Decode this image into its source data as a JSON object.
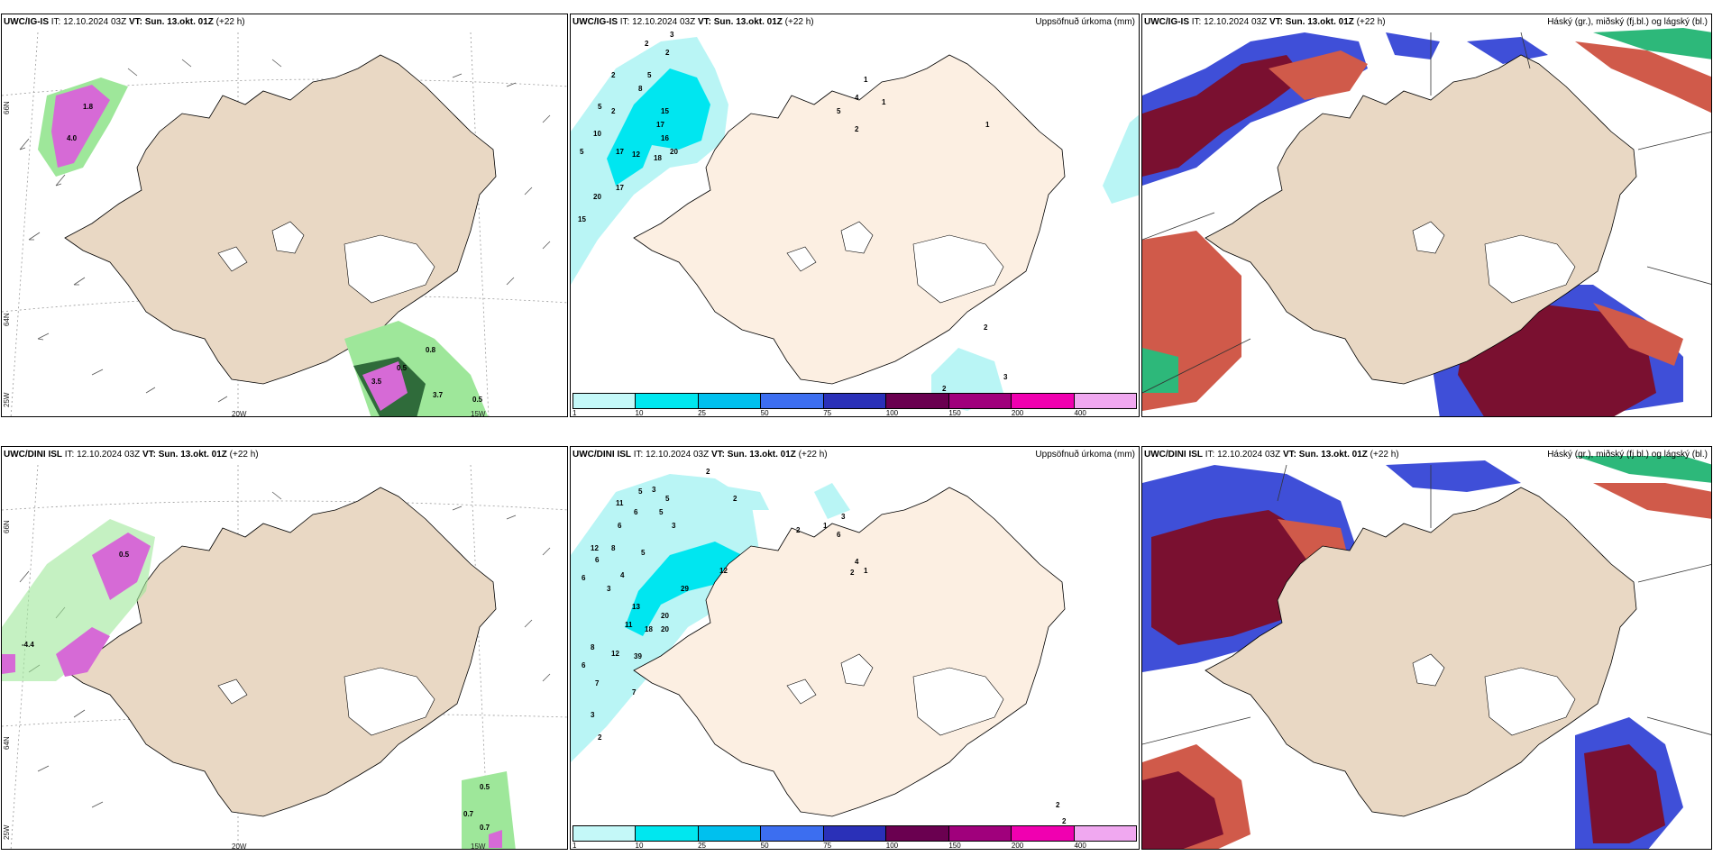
{
  "colors": {
    "land": "#e9d8c4",
    "land_light": "#fcefe2",
    "glacier": "#ffffff",
    "precip_light": "#b9f5f5",
    "precip_mid": "#00e6f0",
    "cloud_high": "#7a1030",
    "cloud_mid": "#d05a4a",
    "cloud_low": "#3f4fd8",
    "green": "#9ee79a"
  },
  "rows": [
    {
      "model": "UWC/IG-IS",
      "it_label": "IT:",
      "it_value": "12.10.2024 03Z",
      "vt_label": "VT:",
      "vt_value": "Sun. 13.okt. 01Z",
      "lead": "(+22 h)"
    },
    {
      "model": "UWC/DINI ISL",
      "it_label": "IT:",
      "it_value": "12.10.2024 03Z",
      "vt_label": "VT:",
      "vt_value": "Sun. 13.okt. 01Z",
      "lead": "(+22 h)"
    }
  ],
  "titles": {
    "precip": "Uppsöfnuð úrkoma (mm)",
    "clouds": "Háský (gr.), miðský (fj.bl.) og lágský (bl.)"
  },
  "grid_labels": {
    "lat66": "66N",
    "lat64": "64N",
    "lon20": "20W",
    "lon15": "15W",
    "lon25": "25W"
  },
  "legend": {
    "ticks": [
      "1",
      "10",
      "25",
      "50",
      "75",
      "100",
      "150",
      "200",
      "400"
    ],
    "colors": [
      "#c4f8f8",
      "#00e7ef",
      "#00c0ee",
      "#3c6ef0",
      "#2a30b8",
      "#6a0050",
      "#a0007c",
      "#f000b0",
      "#f0a8f0"
    ]
  },
  "precip_top_numbers": [
    "3",
    "2",
    "2",
    "5",
    "2",
    "8",
    "2",
    "10",
    "15",
    "17",
    "17",
    "12",
    "18",
    "20",
    "16",
    "5",
    "5",
    "20",
    "17",
    "15",
    "4",
    "1",
    "1",
    "2",
    "5",
    "1",
    "2",
    "3",
    "2"
  ],
  "precip_bottom_numbers": [
    "2",
    "5",
    "3",
    "5",
    "11",
    "6",
    "5",
    "6",
    "2",
    "12",
    "8",
    "6",
    "5",
    "4",
    "3",
    "6",
    "3",
    "13",
    "20",
    "29",
    "12",
    "11",
    "18",
    "20",
    "8",
    "12",
    "39",
    "6",
    "7",
    "7",
    "3",
    "2",
    "2",
    "3",
    "6",
    "4",
    "1",
    "2",
    "1",
    "2",
    "2"
  ],
  "wind_top_values": [
    "0.5",
    "3.5",
    "0.8",
    "3.7",
    "0.5",
    "4.0",
    "1.8"
  ],
  "wind_bottom_values": [
    "-4.4",
    "0.5",
    "0.7",
    "0.7",
    "0.5"
  ]
}
